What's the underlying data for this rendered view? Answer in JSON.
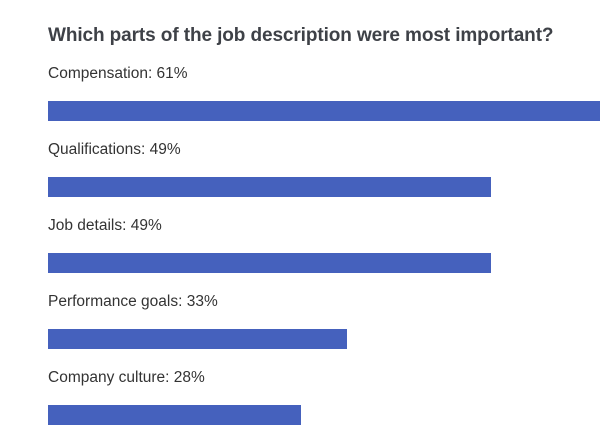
{
  "chart_data": {
    "type": "bar",
    "orientation": "horizontal",
    "title": "Which parts of the job description were most important?",
    "categories": [
      "Compensation",
      "Qualifications",
      "Job details",
      "Performance goals",
      "Company culture"
    ],
    "values": [
      61,
      49,
      49,
      33,
      28
    ],
    "unit": "%",
    "xlim": [
      0,
      62
    ],
    "grid": false,
    "legend": false,
    "value_labels_inline_with_category": true,
    "bar_color": "#4561bd",
    "title_color": "#3e4147",
    "label_color": "#333333",
    "background_color": "#ffffff"
  },
  "rows": [
    {
      "label": "Compensation: 61%",
      "value": 61
    },
    {
      "label": "Qualifications: 49%",
      "value": 49
    },
    {
      "label": "Job details: 49%",
      "value": 49
    },
    {
      "label": "Performance goals: 33%",
      "value": 33
    },
    {
      "label": "Company culture: 28%",
      "value": 28
    }
  ]
}
